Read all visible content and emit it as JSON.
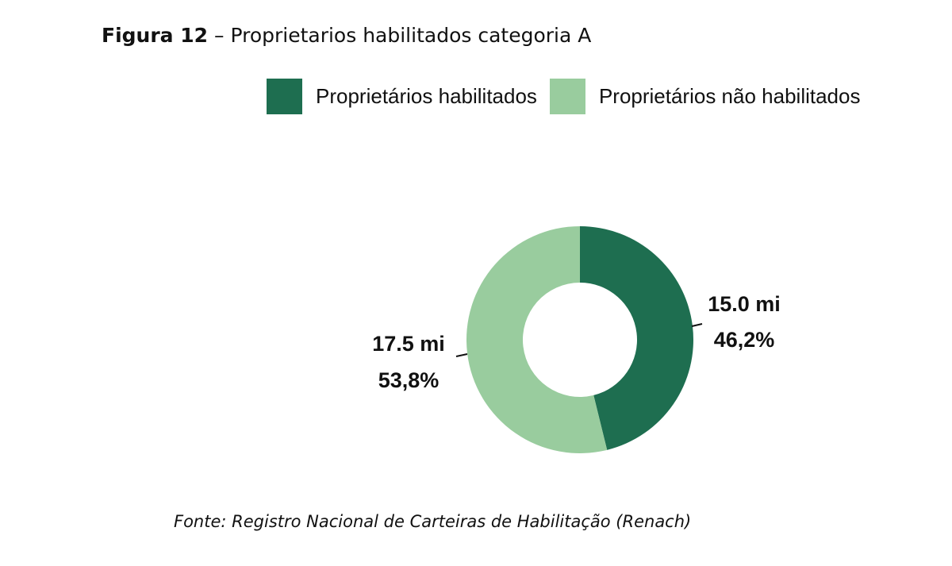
{
  "title": {
    "label": "Figura 12",
    "separator": "–",
    "text": "Proprietarios habilitados categoria A"
  },
  "source": "Fonte: Registro Nacional de Carteiras de Habilitação (Renach)",
  "chart_data": {
    "type": "pie",
    "donut": true,
    "legend_position": "top-right",
    "series": [
      {
        "name": "Proprietários habilitados",
        "value": 15.0,
        "percent": 46.2,
        "value_label": "15.0 mi",
        "percent_label": "46,2%",
        "color": "#1e6e50"
      },
      {
        "name": "Proprietários não habilitados",
        "value": 17.5,
        "percent": 53.8,
        "value_label": "17.5 mi",
        "percent_label": "53,8%",
        "color": "#99cc9e"
      }
    ]
  }
}
